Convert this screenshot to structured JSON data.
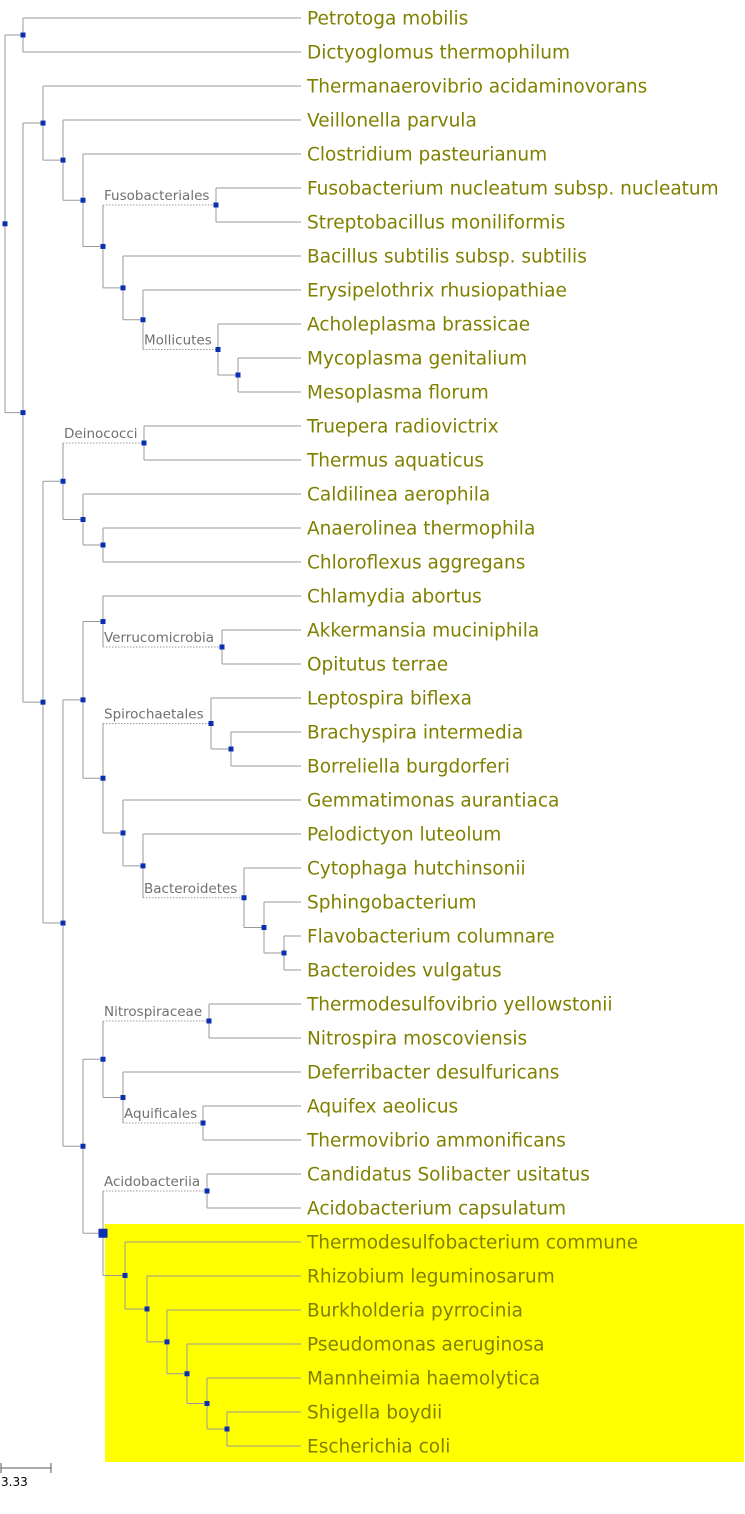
{
  "colors": {
    "branch": "#9a9a9a",
    "leaf_label": "#808000",
    "clade_label": "#707070",
    "node": "#0a2fb0",
    "highlight": "#ffff00"
  },
  "leaves": [
    "Petrotoga mobilis",
    "Dictyoglomus thermophilum",
    "Thermanaerovibrio acidaminovorans",
    "Veillonella parvula",
    "Clostridium pasteurianum",
    "Fusobacterium nucleatum subsp. nucleatum",
    "Streptobacillus moniliformis",
    "Bacillus subtilis subsp. subtilis",
    "Erysipelothrix rhusiopathiae",
    "Acholeplasma brassicae",
    "Mycoplasma genitalium",
    "Mesoplasma florum",
    "Truepera radiovictrix",
    "Thermus aquaticus",
    "Caldilinea aerophila",
    "Anaerolinea thermophila",
    "Chloroflexus aggregans",
    "Chlamydia abortus",
    "Akkermansia muciniphila",
    "Opitutus terrae",
    "Leptospira biflexa",
    "Brachyspira intermedia",
    "Borreliella burgdorferi",
    "Gemmatimonas aurantiaca",
    "Pelodictyon luteolum",
    "Cytophaga hutchinsonii",
    "Sphingobacterium",
    "Flavobacterium columnare",
    "Bacteroides vulgatus",
    "Thermodesulfovibrio yellowstonii",
    "Nitrospira moscoviensis",
    "Deferribacter desulfuricans",
    "Aquifex aeolicus",
    "Thermovibrio ammonificans",
    "Candidatus Solibacter usitatus",
    "Acidobacterium capsulatum",
    "Thermodesulfobacterium commune",
    "Rhizobium leguminosarum",
    "Burkholderia pyrrocinia",
    "Pseudomonas aeruginosa",
    "Mannheimia haemolytica",
    "Shigella boydii",
    "Escherichia coli"
  ],
  "clades": [
    "Fusobacteriales",
    "Mollicutes",
    "Deinococci",
    "Verrucomicrobia",
    "Spirochaetales",
    "Bacteroidetes",
    "Nitrospiraceae",
    "Aquificales",
    "Acidobacteriia"
  ],
  "scale_bar": {
    "label": "3.33"
  }
}
